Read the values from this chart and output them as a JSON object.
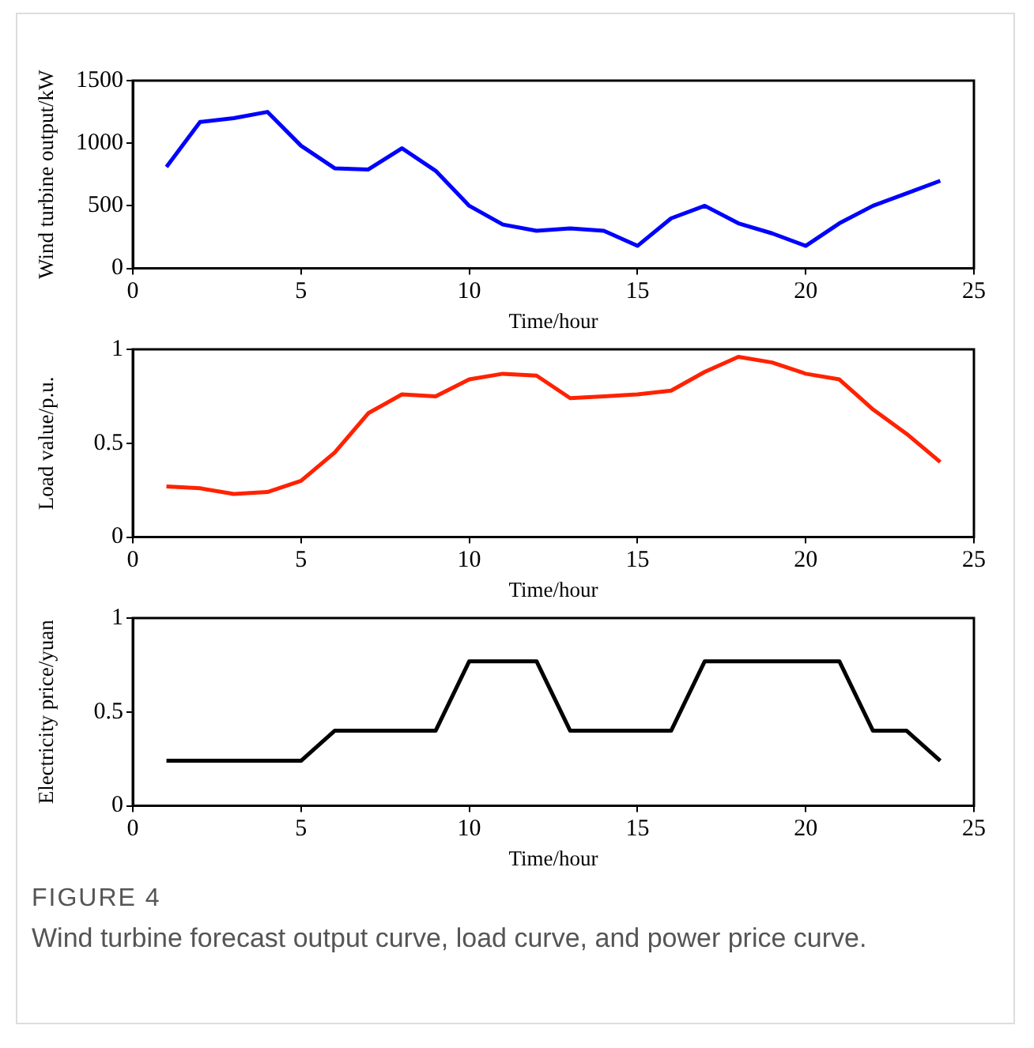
{
  "chart_data": [
    {
      "type": "line",
      "xlabel": "Time/hour",
      "ylabel": "Wind turbine output/kW",
      "x": [
        1,
        2,
        3,
        4,
        5,
        6,
        7,
        8,
        9,
        10,
        11,
        12,
        13,
        14,
        15,
        16,
        17,
        18,
        19,
        20,
        21,
        22,
        23,
        24
      ],
      "series": [
        {
          "color": "#0000ff",
          "values": [
            810,
            1170,
            1200,
            1250,
            980,
            800,
            790,
            960,
            780,
            500,
            350,
            300,
            320,
            300,
            180,
            400,
            500,
            360,
            280,
            180,
            360,
            500,
            600,
            700
          ]
        }
      ],
      "xlim": [
        0,
        25
      ],
      "xticks": [
        0,
        5,
        10,
        15,
        20,
        25
      ],
      "ylim": [
        0,
        1500
      ],
      "yticks": [
        0,
        500,
        1000,
        1500
      ],
      "grid": false,
      "legend": false,
      "marker": "none",
      "line_style": "solid"
    },
    {
      "type": "line",
      "xlabel": "Time/hour",
      "ylabel": "Load value/p.u.",
      "x": [
        1,
        2,
        3,
        4,
        5,
        6,
        7,
        8,
        9,
        10,
        11,
        12,
        13,
        14,
        15,
        16,
        17,
        18,
        19,
        20,
        21,
        22,
        23,
        24
      ],
      "series": [
        {
          "color": "#ff2200",
          "values": [
            0.27,
            0.26,
            0.23,
            0.24,
            0.3,
            0.45,
            0.66,
            0.76,
            0.75,
            0.84,
            0.87,
            0.86,
            0.74,
            0.75,
            0.76,
            0.78,
            0.88,
            0.96,
            0.93,
            0.87,
            0.84,
            0.68,
            0.55,
            0.4
          ]
        }
      ],
      "xlim": [
        0,
        25
      ],
      "xticks": [
        0,
        5,
        10,
        15,
        20,
        25
      ],
      "ylim": [
        0,
        1
      ],
      "yticks": [
        0,
        0.5,
        1
      ],
      "grid": false,
      "legend": false,
      "marker": "none",
      "line_style": "solid"
    },
    {
      "type": "line",
      "xlabel": "Time/hour",
      "ylabel": "Electricity price/yuan",
      "x": [
        1,
        2,
        3,
        4,
        5,
        6,
        7,
        8,
        9,
        10,
        11,
        12,
        13,
        14,
        15,
        16,
        17,
        18,
        19,
        20,
        21,
        22,
        23,
        24
      ],
      "series": [
        {
          "color": "#000000",
          "values": [
            0.24,
            0.24,
            0.24,
            0.24,
            0.24,
            0.4,
            0.4,
            0.4,
            0.4,
            0.77,
            0.77,
            0.77,
            0.4,
            0.4,
            0.4,
            0.4,
            0.77,
            0.77,
            0.77,
            0.77,
            0.77,
            0.4,
            0.4,
            0.24
          ]
        }
      ],
      "xlim": [
        0,
        25
      ],
      "xticks": [
        0,
        5,
        10,
        15,
        20,
        25
      ],
      "ylim": [
        0,
        1
      ],
      "yticks": [
        0,
        0.5,
        1
      ],
      "grid": false,
      "legend": false,
      "marker": "none",
      "line_style": "solid",
      "annotations": [
        "FIGURE 4",
        "Wind turbine forecast output curve, load curve, and power price curve."
      ]
    }
  ]
}
